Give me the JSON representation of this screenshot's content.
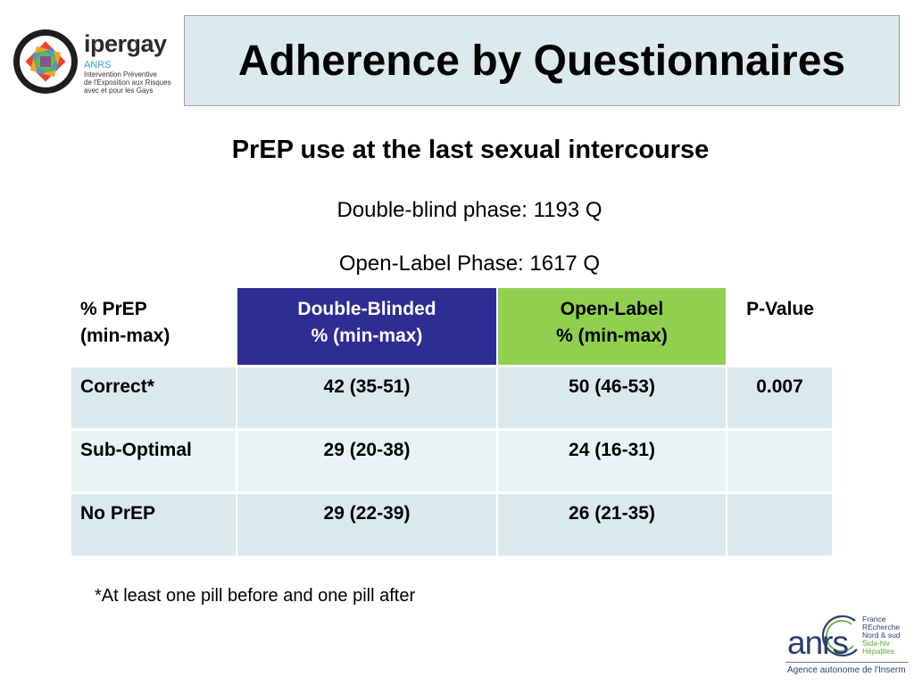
{
  "logo_top_left": {
    "word": "ipergay",
    "org": "ANRS",
    "lines": [
      "Intervention Préventive",
      "de l'Exposition aux Risques",
      "avec et pour les Gays"
    ]
  },
  "title": "Adherence by Questionnaires",
  "subtitle": "PrEP use at the last sexual intercourse",
  "info": {
    "double_blind": "Double-blind phase: 1193 Q",
    "open_label": "Open-Label Phase:  1617 Q"
  },
  "table": {
    "header": {
      "first": [
        "% PrEP",
        "(min-max)"
      ],
      "double_blinded": [
        "Double-Blinded",
        "% (min-max)"
      ],
      "open_label": [
        "Open-Label",
        "% (min-max)"
      ],
      "p_value": "P-Value"
    },
    "rows": [
      {
        "label": "Correct*",
        "double_blinded": "42 (35-51)",
        "open_label": "50 (46-53)",
        "p_value": "0.007"
      },
      {
        "label": "Sub-Optimal",
        "double_blinded": "29 (20-38)",
        "open_label": "24 (16-31)",
        "p_value": ""
      },
      {
        "label": "No PrEP",
        "double_blinded": "29 (22-39)",
        "open_label": "26 (21-35)",
        "p_value": ""
      }
    ]
  },
  "footnote": "*At least one pill before and one pill after",
  "logo_bottom_right": {
    "word": "anrs",
    "lines": [
      "France",
      "REcherche",
      "Nord & sud",
      "Sida-hiv",
      "Hépatites"
    ],
    "agency": "Agence autonome de l'Inserm"
  },
  "colors": {
    "title_bg": "#dbeaed",
    "double_blinded_header": "#2e2d93",
    "open_label_header": "#8fd14f",
    "row_bg_dark": "#dbe9ec",
    "row_bg_light": "#eaf3f4"
  }
}
